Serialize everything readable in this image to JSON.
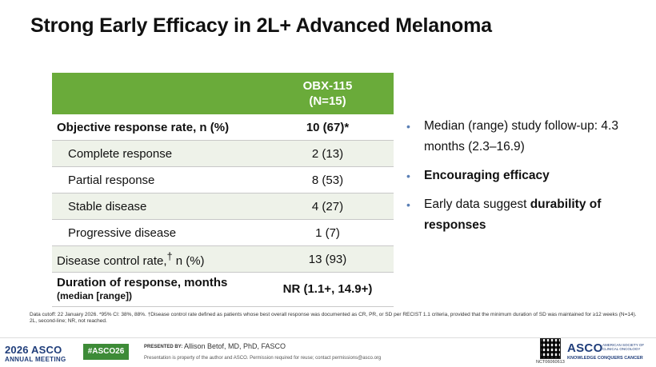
{
  "title": "Strong Early Efficacy in 2L+ Advanced Melanoma",
  "table": {
    "header_line1": "OBX-115",
    "header_line2": "(N=15)",
    "rows": [
      {
        "label": "Objective response rate, n (%)",
        "value": "10 (67)*"
      },
      {
        "label": "Complete response",
        "value": "2 (13)"
      },
      {
        "label": "Partial response",
        "value": "8 (53)"
      },
      {
        "label": "Stable disease",
        "value": "4 (27)"
      },
      {
        "label": "Progressive disease",
        "value": "1 (7)"
      },
      {
        "label": "Disease control rate,",
        "label_sup": "†",
        "label_suffix": " n (%)",
        "value": "13 (93)"
      },
      {
        "label": "Duration of response, months",
        "label_sub": "(median [range])",
        "value": "NR (1.1+, 14.9+)"
      }
    ]
  },
  "bullets": {
    "b1": "Median (range) study follow-up: 4.3 months (2.3–16.9)",
    "b2": "Encouraging efficacy",
    "b3_pre": "Early data suggest ",
    "b3_bold": "durability of responses"
  },
  "footnote": {
    "line1": "Data cutoff: 22 January 2026. *95% CI: 38%, 88%. †Disease control rate defined as patients whose best overall response was documented as CR, PR, or SD per RECIST 1.1 criteria, provided that the minimum duration of SD was maintained for ≥12 weeks (N=14).",
    "line2": "2L, second-line; NR, not reached."
  },
  "footer": {
    "meeting_line1": "2026 ASCO",
    "meeting_line2": "ANNUAL MEETING",
    "hashtag": "#ASCO26",
    "presented_by": "PRESENTED BY:",
    "presenter": "Allison Betof, MD, PhD, FASCO",
    "property": "Presentation is property of the author and ASCO. Permission required for reuse; contact permissions@asco.org",
    "qr_code_text": "NCT06060613",
    "asco": "ASCO",
    "asco_full": "AMERICAN SOCIETY OF CLINICAL ONCOLOGY",
    "asco_tag": "KNOWLEDGE CONQUERS CANCER"
  }
}
